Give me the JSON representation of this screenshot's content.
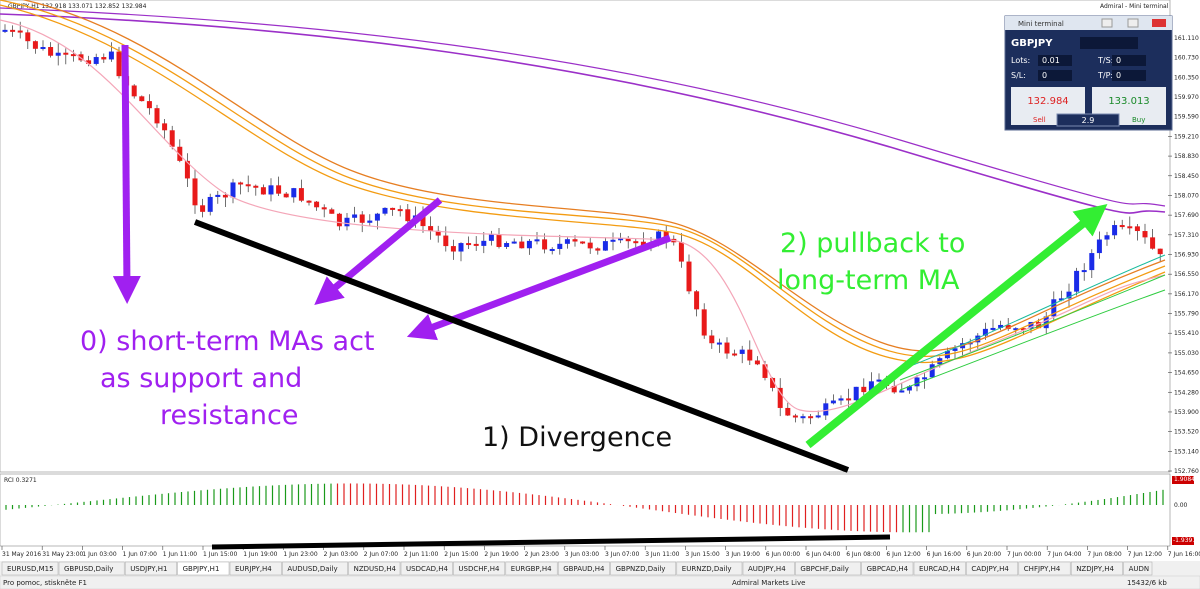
{
  "window": {
    "chart_title": "GBPJPY,H1 132.918 133.071 132.852 132.984",
    "app_title": "Admiral - Mini terminal"
  },
  "price_axis": [
    "161.110",
    "160.730",
    "160.350",
    "159.970",
    "159.590",
    "159.210",
    "158.830",
    "158.450",
    "158.070",
    "157.690",
    "157.310",
    "156.930",
    "156.550",
    "156.170",
    "155.790",
    "155.410",
    "155.030",
    "154.650",
    "154.280",
    "153.900",
    "153.520",
    "153.140",
    "152.760"
  ],
  "time_axis": [
    "31 May 2016",
    "31 May 23:00",
    "1 Jun 03:00",
    "1 Jun 07:00",
    "1 Jun 11:00",
    "1 Jun 15:00",
    "1 Jun 19:00",
    "1 Jun 23:00",
    "2 Jun 03:00",
    "2 Jun 07:00",
    "2 Jun 11:00",
    "2 Jun 15:00",
    "2 Jun 19:00",
    "2 Jun 23:00",
    "3 Jun 03:00",
    "3 Jun 07:00",
    "3 Jun 11:00",
    "3 Jun 15:00",
    "3 Jun 19:00",
    "6 Jun 00:00",
    "6 Jun 04:00",
    "6 Jun 08:00",
    "6 Jun 12:00",
    "6 Jun 16:00",
    "6 Jun 20:00",
    "7 Jun 00:00",
    "7 Jun 04:00",
    "7 Jun 08:00",
    "7 Jun 12:00",
    "7 Jun 16:00"
  ],
  "indicator": {
    "label": "RCI 0.3271",
    "axis": [
      "1.9084",
      "0.00",
      "-1.9391"
    ]
  },
  "annotations": {
    "short_term": [
      "0) short-term MAs act",
      "as support and",
      "resistance"
    ],
    "divergence": "1) Divergence",
    "pullback": [
      "2) pullback to",
      "long-term MA"
    ]
  },
  "mini_terminal": {
    "title": "Mini terminal",
    "symbol": "GBPJPY",
    "lots_label": "Lots:",
    "lots": "0.01",
    "sl_label": "S/L:",
    "sl": "0",
    "ts_label": "T/S:",
    "ts": "0",
    "tp_label": "T/P:",
    "tp": "0",
    "sell_price": "132.984",
    "sell": "Sell",
    "spread": "2.9",
    "buy_price": "133.013",
    "buy": "Buy"
  },
  "tabs": [
    "EURUSD,M15",
    "GBPUSD,Daily",
    "USDJPY,H1",
    "GBPJPY,H1",
    "EURJPY,H4",
    "AUDUSD,Daily",
    "NZDUSD,H4",
    "USDCAD,H4",
    "USDCHF,H4",
    "EURGBP,H4",
    "GBPAUD,H4",
    "GBPNZD,Daily",
    "EURNZD,Daily",
    "AUDJPY,H4",
    "GBPCHF,Daily",
    "GBPCAD,H4",
    "EURCAD,H4",
    "CADJPY,H4",
    "CHFJPY,H4",
    "NZDJPY,H4",
    "AUDN"
  ],
  "status": {
    "help": "Pro pomoc, stiskněte F1",
    "server": "Admiral Markets Live",
    "traffic": "15432/6 kb"
  }
}
